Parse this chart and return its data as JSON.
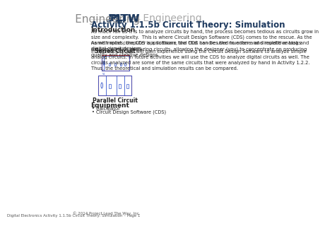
{
  "bg_color": "#ffffff",
  "page_width": 2.31,
  "page_height": 3.0,
  "header_pltw_bold": "PLTW",
  "header_pltw_regular": " Engineering",
  "header_pltw_color": "#1e3a5f",
  "header_engineering_color": "#888888",
  "title": "Activity 1.1.5b Circuit Theory: Simulation",
  "title_color": "#1e3a5f",
  "section_intro": "Introduction",
  "para1": "As much fun as it is to analyze circuits by hand, the process becomes tedious as circuits grow in\nsize and complexity. This is where Circuit Design Software (CDS) comes to the rescue. As the\nname implies, the CDS is a software tool that can be used to enter and simulate analog and\ndigital circuit designs.",
  "para2": "As with most computer applications, the CDS handles the mundane  and repetitive tasks\nassociated with analyzing circuits, allowing the designer (you) to concentrate on producing\nquality and creative designs.",
  "para3": "In this activity you will gain experience using the Circuit Design Software to analyze simple\nanalog circuits. In future activities we will use the CDS to analyze digital circuits as well. The\ncircuits analyzed are some of the same circuits that were analyzed by hand in Activity 1.2.2.\nThus, the theoretical and simulation results can be compared.",
  "label_series": "Series Circuit",
  "label_parallel": "Parallel Circuit",
  "section_equip": "Equipment",
  "bullet1": "Calculator",
  "bullet2": "Circuit Design Software (CDS)",
  "footer1": "© 2014 Project Lead The Way, Inc.",
  "footer2": "Digital Electronics Activity 1.1.5b Circuit Theory: Simulation – Page 1",
  "text_color": "#222222",
  "body_fontsize": 5.5,
  "section_fontsize": 6.5,
  "title_fontsize": 8.5,
  "header_fontsize": 11,
  "footer_fontsize": 4.0,
  "circuit_box_color": "#cc4444",
  "circuit_line_color": "#3355cc",
  "circuit_text_color": "#3355cc"
}
